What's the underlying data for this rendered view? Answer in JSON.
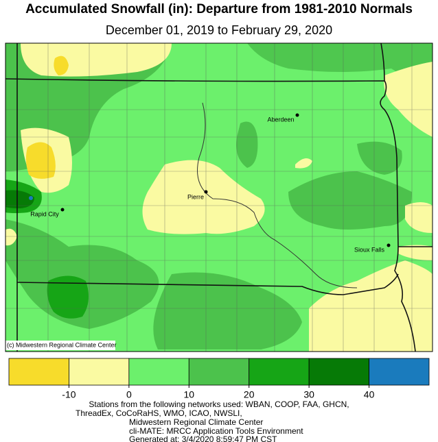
{
  "header": {
    "title": "Accumulated Snowfall (in): Departure from 1981-2010 Normals",
    "subtitle": "December 01, 2019 to February 29, 2020"
  },
  "map": {
    "cities": [
      {
        "label": "Aberdeen"
      },
      {
        "label": "Pierre"
      },
      {
        "label": "Rapid City"
      },
      {
        "label": "Sioux Falls"
      }
    ],
    "credit": "(c) Midwestern Regional Climate Center"
  },
  "legend": {
    "colors": [
      "#f7dc2b",
      "#fafaa2",
      "#6cf06c",
      "#4cc24c",
      "#16a516",
      "#067a06",
      "#1a7bbd"
    ],
    "ticks": [
      -10,
      0,
      10,
      20,
      30,
      40
    ]
  },
  "footer": {
    "lines": [
      "Stations from the following networks used: WBAN, COOP, FAA, GHCN,",
      "ThreadEx, CoCoRaHS, WMO, ICAO, NWSLI,",
      "Midwestern Regional Climate Center",
      "cli-MATE: MRCC Application Tools Environment",
      "Generated at: 3/4/2020 8:59:47 PM CST"
    ]
  }
}
